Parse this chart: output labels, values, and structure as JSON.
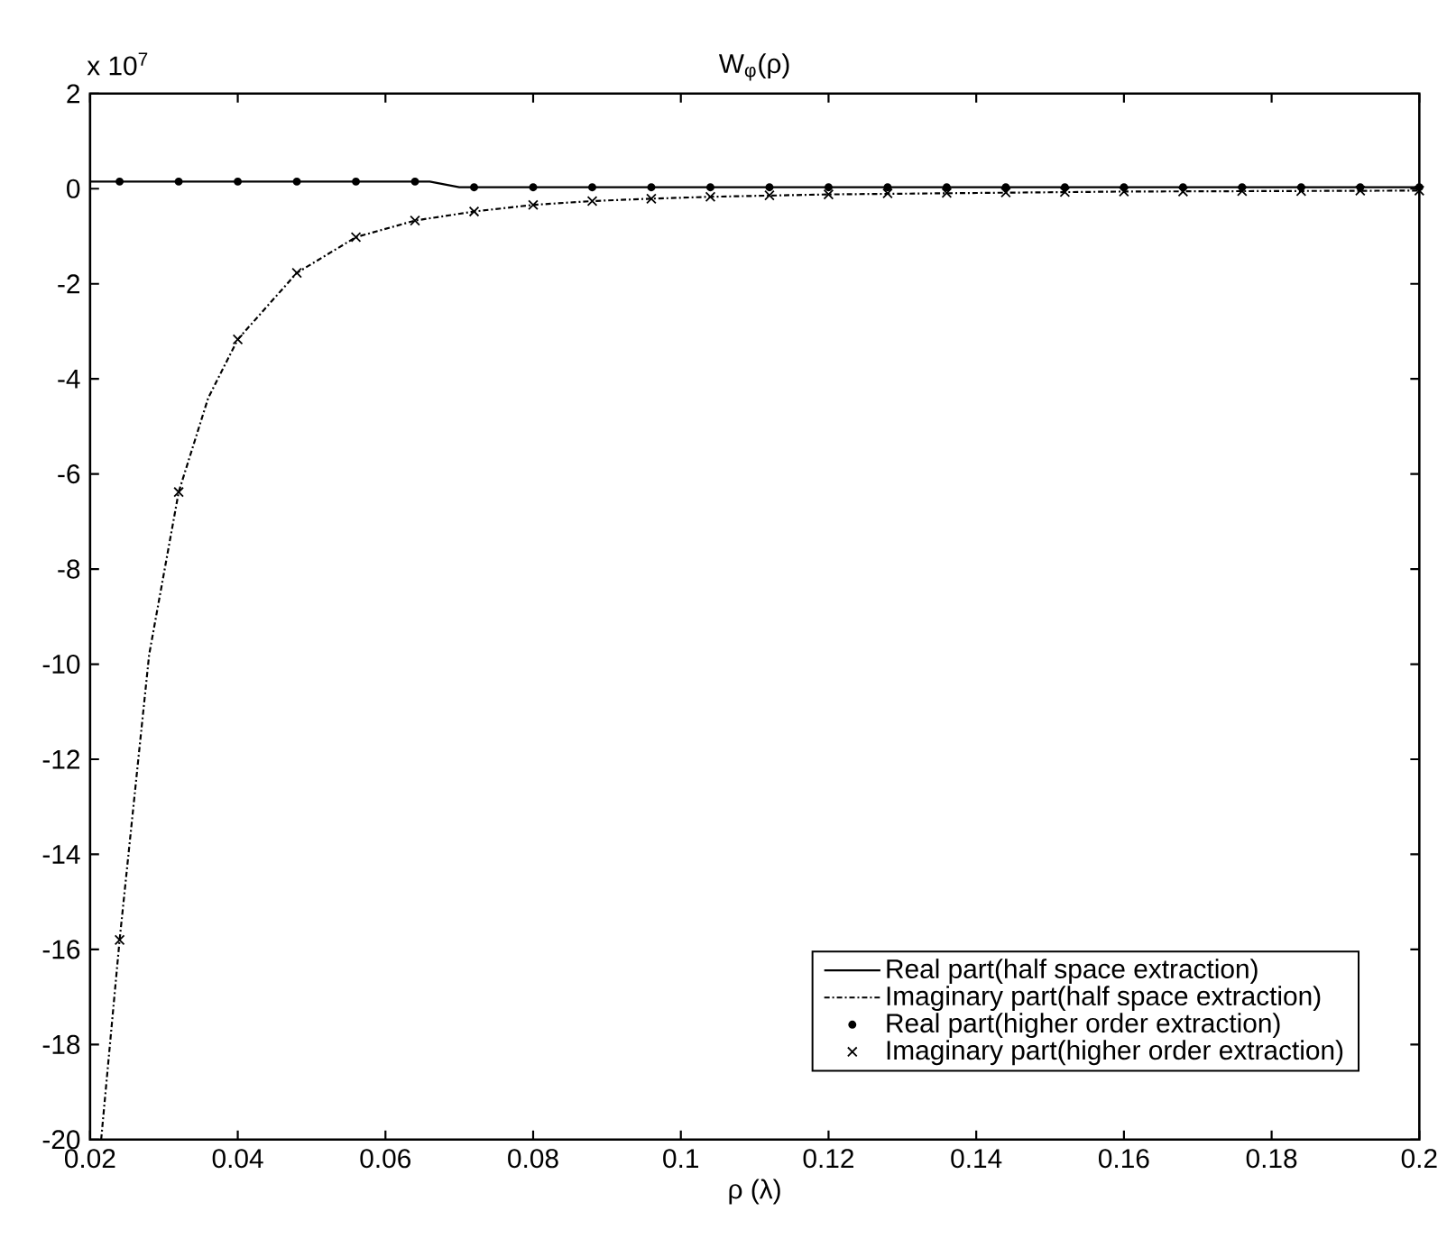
{
  "chart_data": {
    "type": "line",
    "title": "W$_{φ}$(ρ)",
    "xlabel": "ρ (λ)",
    "annotations": [
      "x 10$^{7}$"
    ],
    "xlim": [
      0.02,
      0.2
    ],
    "xticks": [
      0.02,
      0.04,
      0.06,
      0.08,
      0.1,
      0.12,
      0.14,
      0.16,
      0.18,
      0.2
    ],
    "ylim": [
      -20,
      2
    ],
    "yticks": [
      -20,
      -18,
      -16,
      -14,
      -12,
      -10,
      -8,
      -6,
      -4,
      -2,
      0,
      2
    ],
    "grid": false,
    "legend": "bottom right",
    "series": [
      {
        "name": "Real part(half space extraction)",
        "color": "#000000",
        "type": "line",
        "line_style": "solid",
        "marker": "none",
        "x": [
          0.02,
          0.066,
          0.07,
          0.2
        ],
        "values": [
          0.15,
          0.15,
          0.03,
          0.03
        ]
      },
      {
        "name": "Imaginary part(half space extraction)",
        "color": "#000000",
        "type": "line",
        "line_style": "dashdot",
        "marker": "none",
        "x": [
          0.0215,
          0.024,
          0.028,
          0.032,
          0.036,
          0.04,
          0.048,
          0.056,
          0.064,
          0.072,
          0.08,
          0.088,
          0.096,
          0.104,
          0.12,
          0.14,
          0.16,
          0.18,
          0.2
        ],
        "values": [
          -20,
          -15.8,
          -9.8,
          -6.38,
          -4.4,
          -3.17,
          -1.77,
          -1.02,
          -0.67,
          -0.48,
          -0.34,
          -0.26,
          -0.21,
          -0.17,
          -0.12,
          -0.09,
          -0.06,
          -0.05,
          -0.04
        ]
      },
      {
        "name": "Real part(higher order extraction)",
        "color": "#000000",
        "type": "scatter",
        "marker": "circle",
        "x": [
          0.024,
          0.032,
          0.04,
          0.048,
          0.056,
          0.064,
          0.072,
          0.08,
          0.088,
          0.096,
          0.104,
          0.112,
          0.12,
          0.128,
          0.136,
          0.144,
          0.152,
          0.16,
          0.168,
          0.176,
          0.184,
          0.192,
          0.2
        ],
        "values": [
          0.15,
          0.15,
          0.15,
          0.15,
          0.15,
          0.15,
          0.03,
          0.03,
          0.03,
          0.03,
          0.03,
          0.03,
          0.03,
          0.03,
          0.03,
          0.03,
          0.03,
          0.03,
          0.03,
          0.03,
          0.03,
          0.03,
          0.03
        ]
      },
      {
        "name": "Imaginary part(higher order extraction)",
        "color": "#000000",
        "type": "scatter",
        "marker": "cross",
        "x": [
          0.024,
          0.032,
          0.04,
          0.048,
          0.056,
          0.064,
          0.072,
          0.08,
          0.088,
          0.096,
          0.104,
          0.112,
          0.12,
          0.128,
          0.136,
          0.144,
          0.152,
          0.16,
          0.168,
          0.176,
          0.184,
          0.192,
          0.2
        ],
        "values": [
          -15.8,
          -6.38,
          -3.17,
          -1.77,
          -1.02,
          -0.67,
          -0.48,
          -0.34,
          -0.26,
          -0.21,
          -0.17,
          -0.14,
          -0.12,
          -0.1,
          -0.09,
          -0.08,
          -0.07,
          -0.06,
          -0.06,
          -0.05,
          -0.05,
          -0.04,
          -0.04
        ]
      }
    ]
  }
}
